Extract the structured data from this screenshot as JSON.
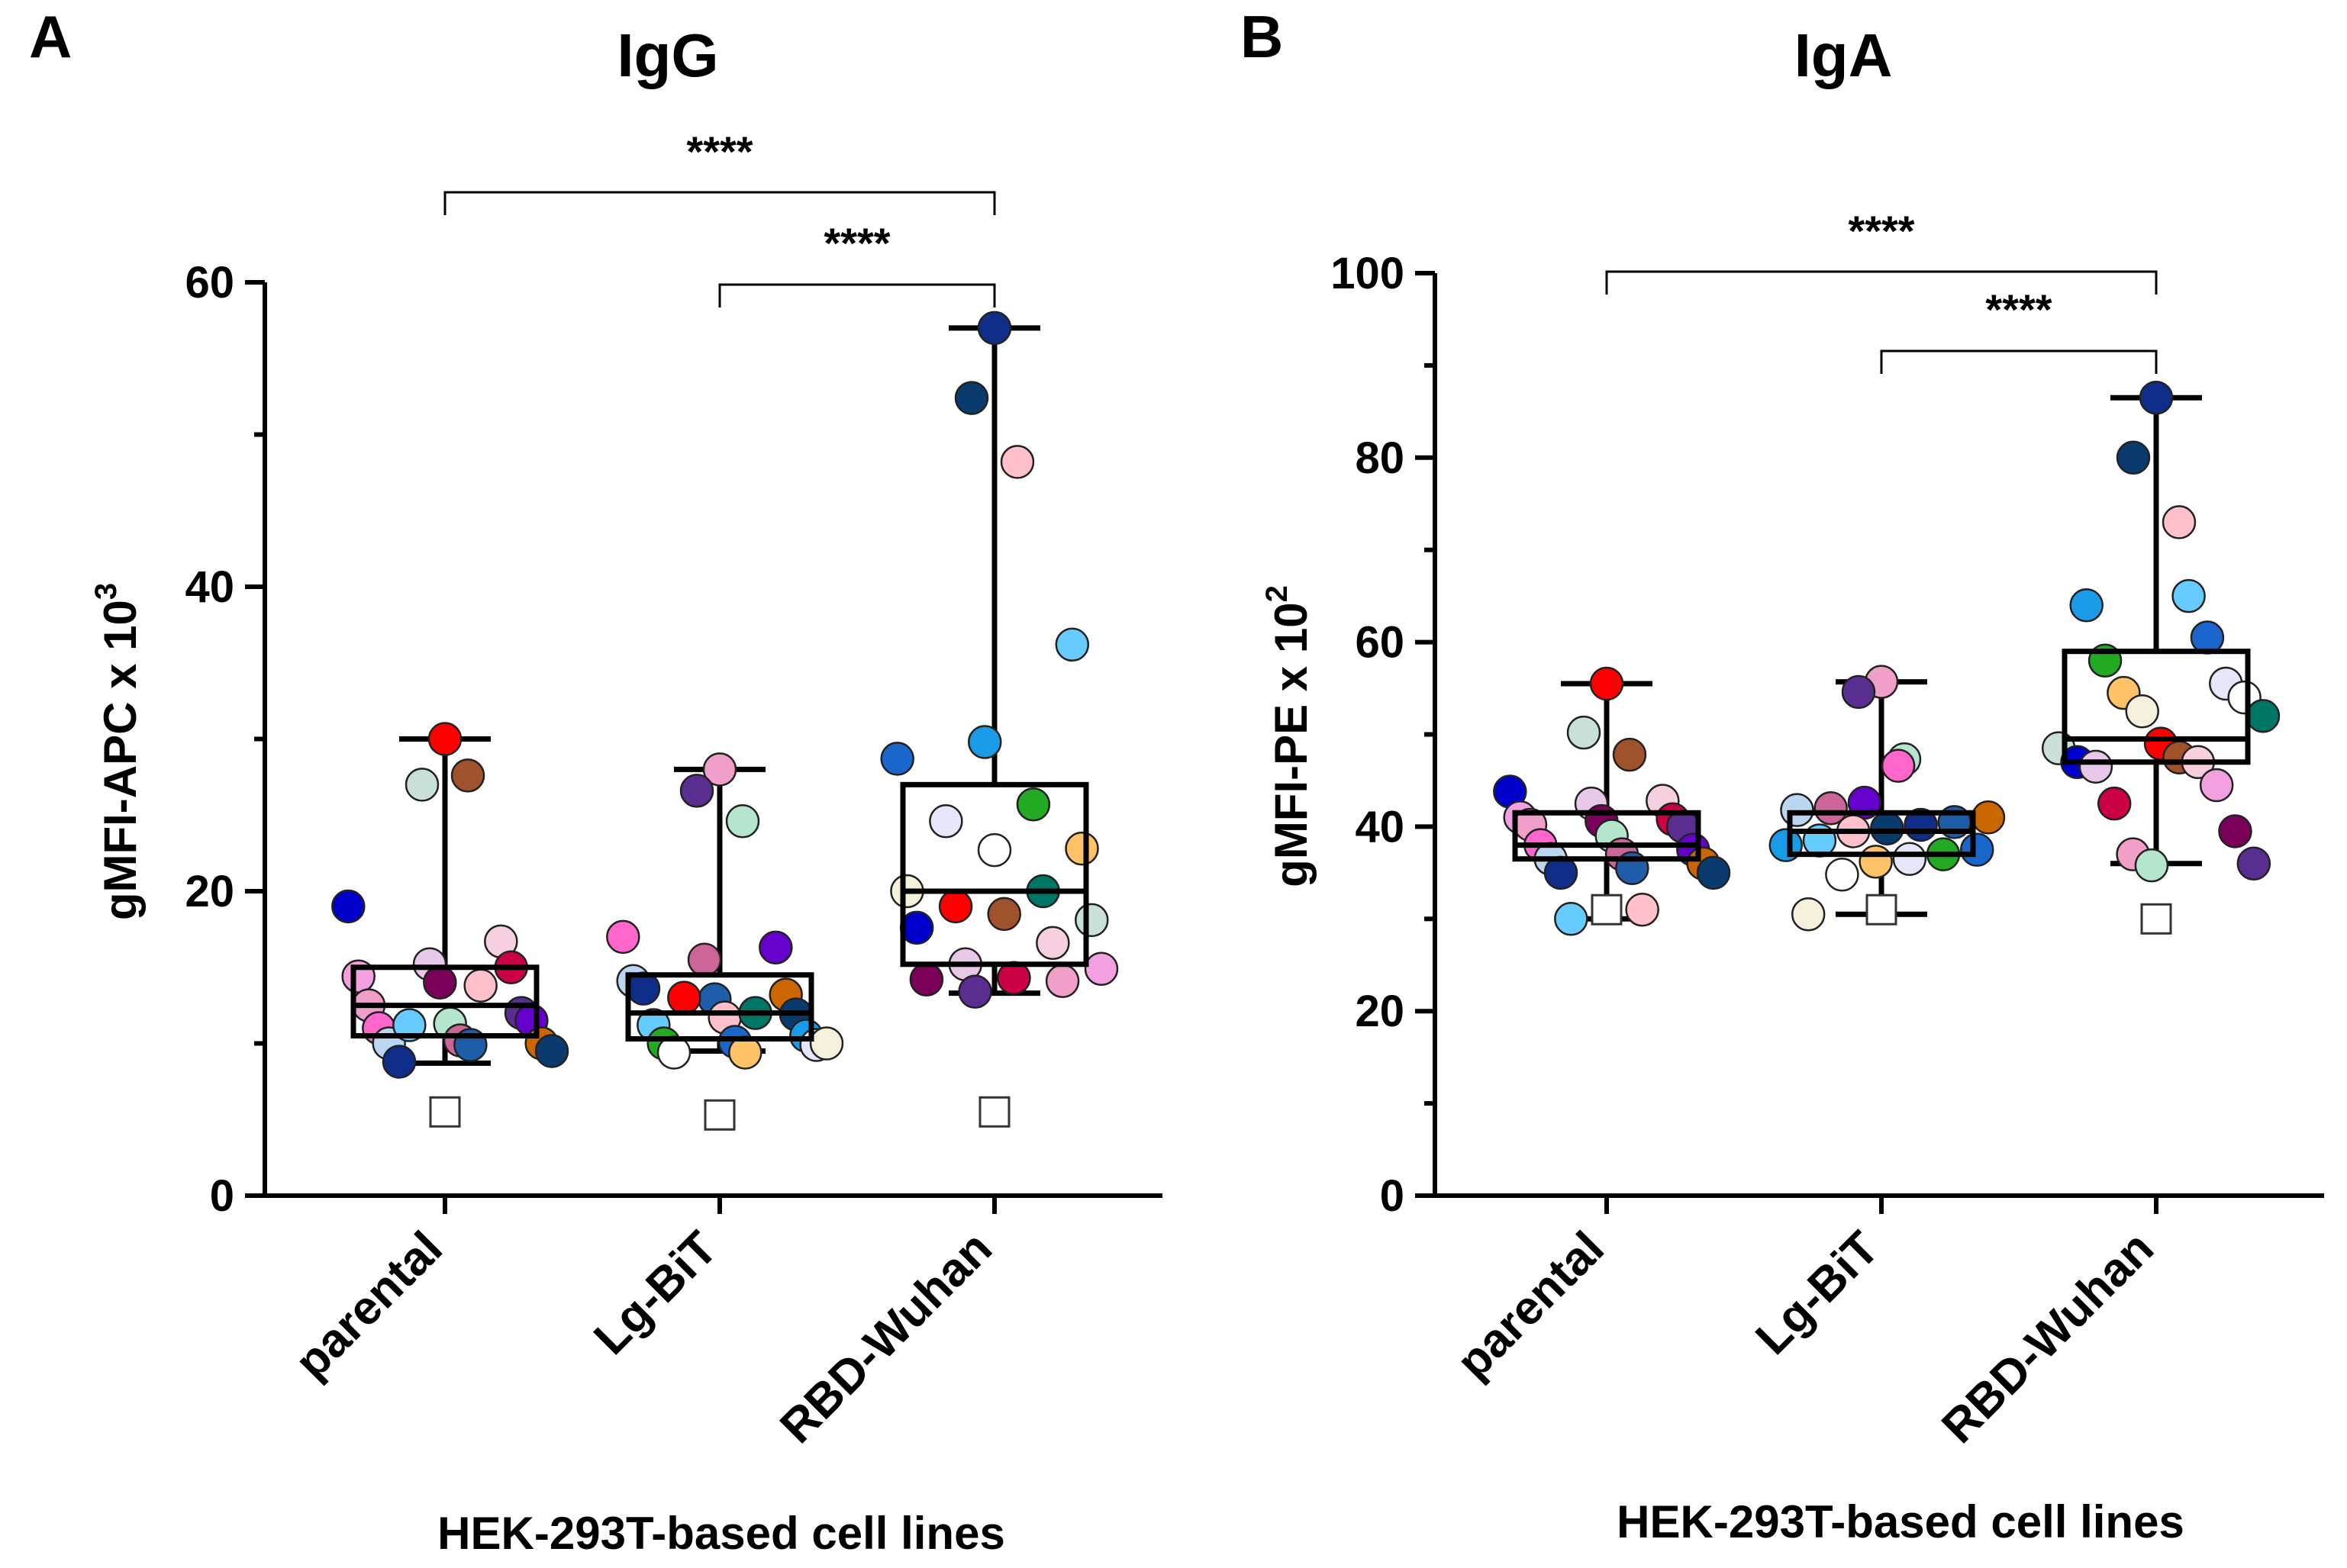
{
  "figure": {
    "panels": [
      {
        "letter": "A",
        "title": "IgG",
        "ylabel": "gMFI-APC x 10",
        "ylabel_exp": "3",
        "xlabel": "HEK-293T-based cell lines"
      },
      {
        "letter": "B",
        "title": "IgA",
        "ylabel": "gMFI-PE x 10",
        "ylabel_exp": "2",
        "xlabel": "HEK-293T-based cell lines"
      }
    ]
  },
  "colors": {
    "palette": [
      "#FF0000",
      "#6600CC",
      "#FFC266",
      "#F0A0C8",
      "#1A9BE8",
      "#E8C8E8",
      "#0E2E8A",
      "#C8E0D8",
      "#CC6699",
      "#FFFFFF",
      "#5A2D91",
      "#1A66CC",
      "#F2A0E0",
      "#0A3B6E",
      "#A0522D",
      "#BBD6F0",
      "#F5F0DC",
      "#B3E6CC",
      "#22AA22",
      "#CC0044",
      "#FFC0CB",
      "#0000CC",
      "#CC6600",
      "#007766",
      "#FF66CC",
      "#E6E6FA",
      "#7A005A",
      "#66CCFF",
      "#F7D0E0",
      "#1E5EA8"
    ]
  },
  "chart_data": [
    {
      "type": "box",
      "panel": "A",
      "title": "IgG",
      "ylabel": "gMFI-APC x 10^3",
      "xlabel": "HEK-293T-based cell lines",
      "ylim": [
        0,
        60
      ],
      "yticks": [
        0,
        20,
        40,
        60
      ],
      "yminor": [
        10,
        30,
        50
      ],
      "categories": [
        "parental",
        "Lg-BiT",
        "RBD-Wuhan"
      ],
      "boxes": [
        {
          "min": 8.7,
          "q1": 10.5,
          "median": 12.5,
          "q3": 15.0,
          "max": 30.0
        },
        {
          "min": 9.5,
          "q1": 10.3,
          "median": 12.0,
          "q3": 14.5,
          "max": 28.0
        },
        {
          "min": 13.3,
          "q1": 15.2,
          "median": 20.0,
          "q3": 27.0,
          "max": 57.0
        }
      ],
      "points": [
        [
          30.0,
          27.0,
          27.6,
          19.0,
          16.7,
          15.2,
          14.4,
          15.0,
          14.0,
          12.5,
          12.0,
          11.3,
          11.0,
          11.5,
          10.2,
          10.0,
          10.0,
          9.9,
          8.8,
          9.5,
          13.8,
          11.2
        ],
        [
          28.0,
          26.6,
          24.6,
          17.0,
          16.3,
          15.5,
          14.1,
          13.2,
          12.9,
          13.6,
          11.9,
          11.7,
          11.2,
          10.5,
          10.1,
          10.0,
          9.9,
          9.4,
          9.4,
          10.0,
          12.0,
          13.0
        ],
        [
          57.0,
          52.4,
          48.2,
          36.2,
          29.8,
          28.7,
          25.7,
          24.6,
          22.8,
          22.7,
          20.0,
          20.0,
          19.0,
          18.1,
          18.5,
          17.6,
          16.6,
          15.2,
          14.9,
          14.3,
          14.2,
          14.1,
          13.4
        ]
      ],
      "controls": [
        5.5,
        5.3,
        5.5
      ],
      "significance": [
        {
          "from": "parental",
          "to": "RBD-Wuhan",
          "label": "****"
        },
        {
          "from": "Lg-BiT",
          "to": "RBD-Wuhan",
          "label": "****"
        }
      ]
    },
    {
      "type": "box",
      "panel": "B",
      "title": "IgA",
      "ylabel": "gMFI-PE x 10^2",
      "xlabel": "HEK-293T-based cell lines",
      "ylim": [
        0,
        100
      ],
      "yticks": [
        0,
        20,
        40,
        60,
        80,
        100
      ],
      "yminor": [
        10,
        30,
        50,
        70,
        90
      ],
      "categories": [
        "parental",
        "Lg-BiT",
        "RBD-Wuhan"
      ],
      "boxes": [
        {
          "min": 30.0,
          "q1": 36.5,
          "median": 38.0,
          "q3": 41.5,
          "max": 55.5
        },
        {
          "min": 30.5,
          "q1": 37.0,
          "median": 39.5,
          "q3": 41.5,
          "max": 55.7
        },
        {
          "min": 36.0,
          "q1": 47.0,
          "median": 49.5,
          "q3": 59.0,
          "max": 86.5
        }
      ],
      "points": [
        [
          55.5,
          50.2,
          47.8,
          43.8,
          42.8,
          42.5,
          41.0,
          40.8,
          40.6,
          40.2,
          40.0,
          39.0,
          38.0,
          37.5,
          37.0,
          36.5,
          36.0,
          35.5,
          35.0,
          35.0,
          31.0,
          30.0
        ],
        [
          55.7,
          54.6,
          47.3,
          46.6,
          42.6,
          42.0,
          41.8,
          41.0,
          40.5,
          40.2,
          39.8,
          39.5,
          38.5,
          38.0,
          37.5,
          37.0,
          36.5,
          36.2,
          34.8,
          30.5
        ],
        [
          86.5,
          80.0,
          73.0,
          65.0,
          64.0,
          60.5,
          58.0,
          55.5,
          54.5,
          54.0,
          52.5,
          52.0,
          49.0,
          48.5,
          47.5,
          47.0,
          47.0,
          46.5,
          44.5,
          42.5,
          39.5,
          37.0,
          36.0,
          35.8
        ]
      ],
      "controls": [
        31.0,
        31.0,
        30.0
      ],
      "significance": [
        {
          "from": "parental",
          "to": "RBD-Wuhan",
          "label": "****"
        },
        {
          "from": "Lg-BiT",
          "to": "RBD-Wuhan",
          "label": "****"
        }
      ]
    }
  ]
}
